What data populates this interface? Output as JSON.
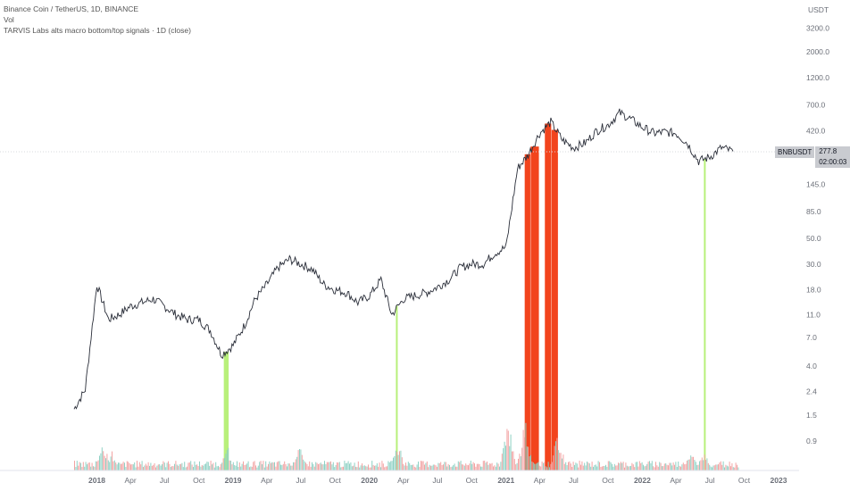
{
  "legend": {
    "title": "Binance Coin / TetherUS, 1D, BINANCE",
    "vol": "Vol",
    "indicator": "TARVIS Labs alts macro bottom/top signals · 1D (close)"
  },
  "currency": "USDT",
  "badge": {
    "symbol": "BNBUSDT",
    "price": "277.8",
    "countdown": "02:00:03"
  },
  "colors": {
    "price_line": "#2a2e39",
    "bottom_signal": "#b8f07a",
    "top_signal": "#f2441d",
    "volume_up": "#8fd1c4",
    "volume_down": "#f2a3a3",
    "axis_text": "#6b6f78",
    "price_guide": "#d7d9de"
  },
  "chart_data": {
    "type": "line",
    "title": "Binance Coin / TetherUS, 1D, BINANCE",
    "y_scale": "log",
    "y_ticks": [
      "3200.0",
      "2000.0",
      "1200.0",
      "700.0",
      "420.0",
      "145.0",
      "85.0",
      "50.0",
      "30.0",
      "18.0",
      "11.0",
      "7.0",
      "4.0",
      "2.4",
      "1.5",
      "0.9"
    ],
    "x_ticks": [
      "2018",
      "Apr",
      "Jul",
      "Oct",
      "2019",
      "Apr",
      "Jul",
      "Oct",
      "2020",
      "Apr",
      "Jul",
      "Oct",
      "2021",
      "Apr",
      "Jul",
      "Oct",
      "2022",
      "Apr",
      "Jul",
      "Oct",
      "2023"
    ],
    "series": [
      {
        "name": "BNBUSDT",
        "x": [
          "2017-11",
          "2017-12",
          "2018-01",
          "2018-02",
          "2018-03",
          "2018-04",
          "2018-05",
          "2018-06",
          "2018-07",
          "2018-08",
          "2018-09",
          "2018-10",
          "2018-11",
          "2018-12",
          "2019-01",
          "2019-02",
          "2019-03",
          "2019-04",
          "2019-05",
          "2019-06",
          "2019-07",
          "2019-08",
          "2019-09",
          "2019-10",
          "2019-11",
          "2019-12",
          "2020-01",
          "2020-02",
          "2020-03",
          "2020-04",
          "2020-05",
          "2020-06",
          "2020-07",
          "2020-08",
          "2020-09",
          "2020-10",
          "2020-11",
          "2020-12",
          "2021-01",
          "2021-02",
          "2021-03",
          "2021-04",
          "2021-05",
          "2021-06",
          "2021-07",
          "2021-08",
          "2021-09",
          "2021-10",
          "2021-11",
          "2021-12",
          "2022-01",
          "2022-02",
          "2022-03",
          "2022-04",
          "2022-05",
          "2022-06",
          "2022-07",
          "2022-08",
          "2022-09"
        ],
        "values": [
          1.7,
          2.5,
          20.0,
          10.0,
          11.0,
          13.0,
          14.0,
          15.0,
          13.0,
          11.0,
          10.0,
          10.0,
          8.0,
          5.0,
          6.0,
          9.0,
          15.0,
          20.0,
          28.0,
          33.0,
          30.0,
          27.0,
          20.0,
          18.0,
          17.0,
          14.0,
          16.0,
          22.0,
          11.0,
          15.0,
          16.0,
          17.0,
          19.0,
          22.0,
          28.0,
          30.0,
          30.0,
          37.0,
          42.0,
          200.0,
          260.0,
          400.0,
          500.0,
          350.0,
          300.0,
          330.0,
          420.0,
          470.0,
          600.0,
          530.0,
          450.0,
          400.0,
          410.0,
          400.0,
          330.0,
          230.0,
          250.0,
          300.0,
          280.0
        ]
      }
    ],
    "signals": {
      "bottom": [
        {
          "start": "2018-12-07",
          "end": "2018-12-20"
        },
        {
          "start": "2020-03-12",
          "end": "2020-03-14"
        },
        {
          "start": "2022-06-15",
          "end": "2022-06-19"
        }
      ],
      "top": [
        {
          "start": "2021-02-20",
          "end": "2021-03-07"
        },
        {
          "start": "2021-03-08",
          "end": "2021-03-30"
        },
        {
          "start": "2021-04-15",
          "end": "2021-05-02"
        },
        {
          "start": "2021-05-03",
          "end": "2021-05-20"
        }
      ]
    },
    "current_price": 277.8,
    "volume_spikes": [
      {
        "date": "2018-01-15",
        "value": 0.6
      },
      {
        "date": "2018-02-10",
        "value": 0.35
      },
      {
        "date": "2018-12-15",
        "value": 0.45
      },
      {
        "date": "2019-06-25",
        "value": 0.5
      },
      {
        "date": "2020-03-13",
        "value": 0.65
      },
      {
        "date": "2021-01-05",
        "value": 1.0
      },
      {
        "date": "2021-02-20",
        "value": 0.9
      },
      {
        "date": "2021-05-19",
        "value": 0.7
      },
      {
        "date": "2022-05-10",
        "value": 0.35
      },
      {
        "date": "2022-06-15",
        "value": 0.4
      }
    ]
  }
}
